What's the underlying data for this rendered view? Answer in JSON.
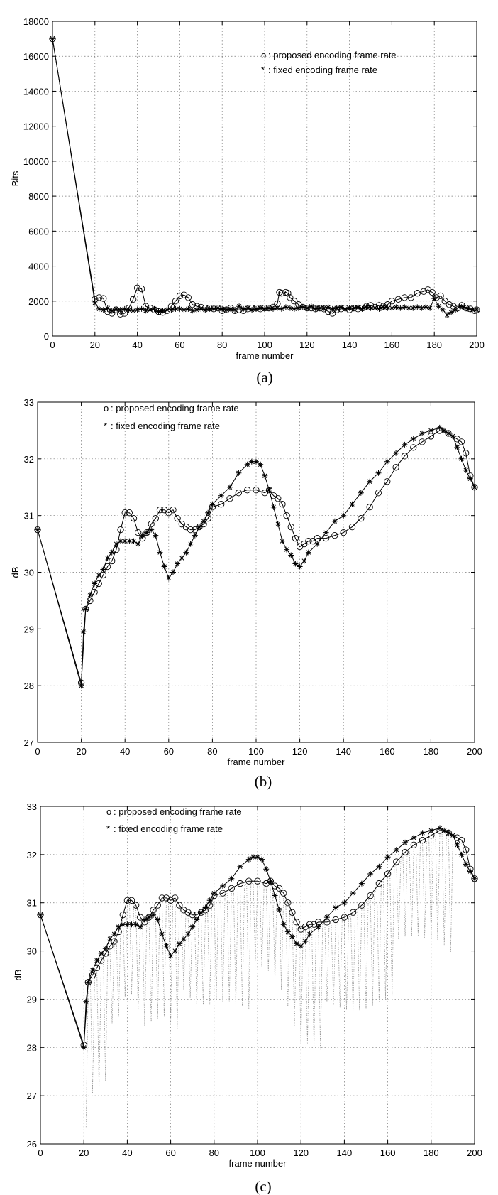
{
  "chart_data": [
    {
      "id": "a",
      "type": "line",
      "caption": "(a)",
      "xlabel": "frame number",
      "ylabel": "Bits",
      "xlim": [
        0,
        200
      ],
      "ylim": [
        0,
        18000
      ],
      "xticks": [
        0,
        20,
        40,
        60,
        80,
        100,
        120,
        140,
        160,
        180,
        200
      ],
      "yticks": [
        0,
        2000,
        4000,
        6000,
        8000,
        10000,
        12000,
        14000,
        16000,
        18000
      ],
      "grid": true,
      "legend_position": "top-right",
      "series": [
        {
          "name": "proposed encoding frame rate",
          "legend_symbol": "o",
          "marker": "circle",
          "x": [
            0,
            20,
            22,
            24,
            26,
            28,
            30,
            32,
            34,
            36,
            38,
            40,
            42,
            44,
            46,
            48,
            50,
            52,
            54,
            56,
            58,
            60,
            62,
            64,
            66,
            68,
            70,
            72,
            74,
            76,
            78,
            80,
            82,
            84,
            86,
            88,
            90,
            92,
            94,
            96,
            98,
            100,
            102,
            104,
            106,
            107,
            108,
            110,
            111,
            112,
            114,
            116,
            118,
            120,
            122,
            124,
            126,
            128,
            130,
            132,
            134,
            136,
            138,
            140,
            142,
            144,
            146,
            148,
            150,
            152,
            154,
            156,
            158,
            160,
            163,
            166,
            169,
            172,
            175,
            177,
            179,
            181,
            183,
            185,
            187,
            189,
            191,
            193,
            195,
            197,
            199,
            200
          ],
          "y": [
            17000,
            2100,
            2200,
            2150,
            1400,
            1300,
            1500,
            1250,
            1300,
            1600,
            2100,
            2750,
            2700,
            1700,
            1600,
            1500,
            1400,
            1350,
            1450,
            1700,
            2000,
            2300,
            2350,
            2200,
            1800,
            1700,
            1650,
            1600,
            1600,
            1550,
            1600,
            1450,
            1500,
            1600,
            1450,
            1500,
            1450,
            1550,
            1600,
            1600,
            1550,
            1600,
            1600,
            1650,
            1850,
            2500,
            2450,
            2500,
            2450,
            2200,
            2000,
            1800,
            1650,
            1600,
            1600,
            1550,
            1600,
            1550,
            1400,
            1300,
            1500,
            1550,
            1600,
            1500,
            1600,
            1550,
            1600,
            1700,
            1750,
            1650,
            1750,
            1700,
            1800,
            2000,
            2100,
            2200,
            2200,
            2450,
            2550,
            2650,
            2500,
            2200,
            2300,
            2000,
            1800,
            1700,
            1600,
            1750,
            1600,
            1550,
            1450,
            1500
          ]
        },
        {
          "name": "fixed encoding frame rate",
          "legend_symbol": "*",
          "marker": "star",
          "x": [
            0,
            20,
            22,
            24,
            26,
            28,
            30,
            32,
            34,
            36,
            38,
            40,
            42,
            44,
            46,
            48,
            50,
            52,
            54,
            56,
            58,
            60,
            62,
            64,
            66,
            68,
            70,
            72,
            74,
            76,
            78,
            80,
            82,
            84,
            86,
            88,
            90,
            92,
            94,
            96,
            98,
            100,
            102,
            104,
            106,
            108,
            110,
            112,
            114,
            116,
            118,
            120,
            122,
            124,
            126,
            128,
            130,
            132,
            134,
            136,
            138,
            140,
            142,
            144,
            146,
            148,
            150,
            152,
            154,
            156,
            158,
            160,
            162,
            164,
            166,
            168,
            170,
            172,
            174,
            176,
            178,
            180,
            182,
            184,
            186,
            188,
            190,
            192,
            194,
            196,
            198,
            200
          ],
          "y": [
            17000,
            1900,
            1550,
            1500,
            1600,
            1450,
            1550,
            1500,
            1550,
            1500,
            1450,
            1500,
            1550,
            1450,
            1500,
            1550,
            1400,
            1450,
            1500,
            1500,
            1550,
            1550,
            1500,
            1550,
            1450,
            1500,
            1550,
            1500,
            1550,
            1550,
            1600,
            1550,
            1500,
            1550,
            1500,
            1700,
            1550,
            1600,
            1500,
            1550,
            1600,
            1550,
            1600,
            1550,
            1600,
            1550,
            1650,
            1600,
            1550,
            1600,
            1650,
            1600,
            1700,
            1550,
            1600,
            1600,
            1650,
            1550,
            1600,
            1650,
            1550,
            1600,
            1600,
            1650,
            1550,
            1650,
            1600,
            1600,
            1550,
            1650,
            1600,
            1600,
            1650,
            1600,
            1650,
            1600,
            1600,
            1650,
            1600,
            1650,
            1600,
            2150,
            1700,
            1500,
            1200,
            1350,
            1500,
            1700,
            1650,
            1550,
            1500,
            1500
          ]
        }
      ]
    },
    {
      "id": "b",
      "type": "line",
      "caption": "(b)",
      "xlabel": "frame number",
      "ylabel": "dB",
      "xlim": [
        0,
        200
      ],
      "ylim": [
        27,
        33
      ],
      "xticks": [
        0,
        20,
        40,
        60,
        80,
        100,
        120,
        140,
        160,
        180,
        200
      ],
      "yticks": [
        27,
        28,
        29,
        30,
        31,
        32,
        33
      ],
      "grid": true,
      "legend_position": "top-left",
      "series": [
        {
          "name": "proposed encoding frame rate",
          "legend_symbol": "o",
          "marker": "circle",
          "x": [
            0,
            20,
            22,
            24,
            26,
            28,
            30,
            32,
            34,
            36,
            38,
            40,
            42,
            44,
            46,
            48,
            50,
            52,
            54,
            56,
            58,
            60,
            62,
            64,
            66,
            68,
            70,
            72,
            74,
            76,
            78,
            80,
            84,
            88,
            92,
            96,
            100,
            104,
            106,
            108,
            110,
            112,
            114,
            116,
            118,
            120,
            122,
            124,
            126,
            128,
            132,
            136,
            140,
            144,
            148,
            152,
            156,
            160,
            164,
            168,
            172,
            176,
            180,
            184,
            188,
            192,
            194,
            196,
            198,
            200
          ],
          "y": [
            30.75,
            28.05,
            29.35,
            29.5,
            29.65,
            29.8,
            29.95,
            30.1,
            30.2,
            30.4,
            30.75,
            31.05,
            31.05,
            30.95,
            30.7,
            30.6,
            30.7,
            30.85,
            30.95,
            31.1,
            31.1,
            31.05,
            31.1,
            30.95,
            30.85,
            30.8,
            30.75,
            30.75,
            30.8,
            30.85,
            30.95,
            31.15,
            31.2,
            31.3,
            31.4,
            31.45,
            31.45,
            31.4,
            31.45,
            31.35,
            31.3,
            31.2,
            31.0,
            30.8,
            30.6,
            30.45,
            30.5,
            30.55,
            30.55,
            30.6,
            30.6,
            30.65,
            30.7,
            30.8,
            30.95,
            31.15,
            31.4,
            31.6,
            31.85,
            32.05,
            32.2,
            32.3,
            32.4,
            32.5,
            32.45,
            32.35,
            32.3,
            32.1,
            31.7,
            31.5
          ]
        },
        {
          "name": "fixed encoding frame rate",
          "legend_symbol": "*",
          "marker": "star",
          "x": [
            0,
            20,
            21,
            22,
            24,
            26,
            28,
            30,
            32,
            34,
            36,
            38,
            40,
            42,
            44,
            46,
            48,
            50,
            52,
            54,
            56,
            58,
            60,
            62,
            64,
            66,
            68,
            70,
            72,
            74,
            76,
            78,
            80,
            84,
            88,
            92,
            96,
            98,
            100,
            102,
            104,
            106,
            108,
            110,
            112,
            114,
            116,
            118,
            120,
            122,
            124,
            128,
            132,
            136,
            140,
            144,
            148,
            152,
            156,
            160,
            164,
            168,
            172,
            176,
            180,
            184,
            186,
            188,
            190,
            192,
            194,
            196,
            198,
            200
          ],
          "y": [
            30.75,
            28.0,
            28.95,
            29.35,
            29.6,
            29.8,
            29.95,
            30.05,
            30.25,
            30.35,
            30.5,
            30.55,
            30.55,
            30.55,
            30.55,
            30.5,
            30.65,
            30.7,
            30.75,
            30.65,
            30.35,
            30.1,
            29.9,
            30.0,
            30.15,
            30.25,
            30.35,
            30.5,
            30.65,
            30.8,
            30.9,
            31.05,
            31.2,
            31.35,
            31.5,
            31.75,
            31.9,
            31.95,
            31.95,
            31.9,
            31.7,
            31.45,
            31.15,
            30.85,
            30.55,
            30.4,
            30.3,
            30.15,
            30.1,
            30.2,
            30.35,
            30.5,
            30.7,
            30.9,
            31.0,
            31.2,
            31.4,
            31.6,
            31.75,
            31.95,
            32.1,
            32.25,
            32.35,
            32.45,
            32.5,
            32.55,
            32.5,
            32.45,
            32.4,
            32.2,
            32.0,
            31.8,
            31.65,
            31.5
          ]
        }
      ]
    },
    {
      "id": "c",
      "type": "line",
      "caption": "(c)",
      "xlabel": "frame number",
      "ylabel": "dB",
      "xlim": [
        0,
        200
      ],
      "ylim": [
        26,
        33
      ],
      "xticks": [
        0,
        20,
        40,
        60,
        80,
        100,
        120,
        140,
        160,
        180,
        200
      ],
      "yticks": [
        26,
        27,
        28,
        29,
        30,
        31,
        32,
        33
      ],
      "grid": true,
      "legend_position": "top-left",
      "series": [
        {
          "name": "proposed encoding frame rate",
          "legend_symbol": "o",
          "marker": "circle",
          "x": [
            0,
            20,
            22,
            24,
            26,
            28,
            30,
            32,
            34,
            36,
            38,
            40,
            42,
            44,
            46,
            48,
            50,
            52,
            54,
            56,
            58,
            60,
            62,
            64,
            66,
            68,
            70,
            72,
            74,
            76,
            78,
            80,
            84,
            88,
            92,
            96,
            100,
            104,
            106,
            108,
            110,
            112,
            114,
            116,
            118,
            120,
            122,
            124,
            126,
            128,
            132,
            136,
            140,
            144,
            148,
            152,
            156,
            160,
            164,
            168,
            172,
            176,
            180,
            184,
            188,
            192,
            194,
            196,
            198,
            200
          ],
          "y": [
            30.75,
            28.05,
            29.35,
            29.5,
            29.65,
            29.8,
            29.95,
            30.1,
            30.2,
            30.4,
            30.75,
            31.05,
            31.05,
            30.95,
            30.7,
            30.6,
            30.7,
            30.85,
            30.95,
            31.1,
            31.1,
            31.05,
            31.1,
            30.95,
            30.85,
            30.8,
            30.75,
            30.75,
            30.8,
            30.85,
            30.95,
            31.15,
            31.2,
            31.3,
            31.4,
            31.45,
            31.45,
            31.4,
            31.45,
            31.35,
            31.3,
            31.2,
            31.0,
            30.8,
            30.6,
            30.45,
            30.5,
            30.55,
            30.55,
            30.6,
            30.6,
            30.65,
            30.7,
            30.8,
            30.95,
            31.15,
            31.4,
            31.6,
            31.85,
            32.05,
            32.2,
            32.3,
            32.4,
            32.5,
            32.45,
            32.35,
            32.3,
            32.1,
            31.7,
            31.5
          ]
        },
        {
          "name": "fixed encoding frame rate",
          "legend_symbol": "*",
          "marker": "star",
          "x": [
            0,
            20,
            21,
            22,
            24,
            26,
            28,
            30,
            32,
            34,
            36,
            38,
            40,
            42,
            44,
            46,
            48,
            50,
            52,
            54,
            56,
            58,
            60,
            62,
            64,
            66,
            68,
            70,
            72,
            74,
            76,
            78,
            80,
            84,
            88,
            92,
            96,
            98,
            100,
            102,
            104,
            106,
            108,
            110,
            112,
            114,
            116,
            118,
            120,
            122,
            124,
            128,
            132,
            136,
            140,
            144,
            148,
            152,
            156,
            160,
            164,
            168,
            172,
            176,
            180,
            184,
            186,
            188,
            190,
            192,
            194,
            196,
            198,
            200
          ],
          "y": [
            30.75,
            28.0,
            28.95,
            29.35,
            29.6,
            29.8,
            29.95,
            30.05,
            30.25,
            30.35,
            30.5,
            30.55,
            30.55,
            30.55,
            30.55,
            30.5,
            30.65,
            30.7,
            30.75,
            30.65,
            30.35,
            30.1,
            29.9,
            30.0,
            30.15,
            30.25,
            30.35,
            30.5,
            30.65,
            30.8,
            30.9,
            31.05,
            31.2,
            31.35,
            31.5,
            31.75,
            31.9,
            31.95,
            31.95,
            31.9,
            31.7,
            31.45,
            31.15,
            30.85,
            30.55,
            30.4,
            30.3,
            30.15,
            30.1,
            30.2,
            30.35,
            30.5,
            30.7,
            30.9,
            31.0,
            31.2,
            31.4,
            31.6,
            31.75,
            31.95,
            32.1,
            32.25,
            32.35,
            32.45,
            32.5,
            32.55,
            32.5,
            32.45,
            32.4,
            32.2,
            32.0,
            31.8,
            31.65,
            31.5
          ]
        }
      ],
      "dotted_series": {
        "style": "dotted",
        "note_visible": false,
        "x_start": 21,
        "x_end": 190,
        "x_step": 1,
        "dip_period_frames": 3,
        "dip_depth_db": [
          1.6,
          2.6
        ]
      }
    }
  ]
}
